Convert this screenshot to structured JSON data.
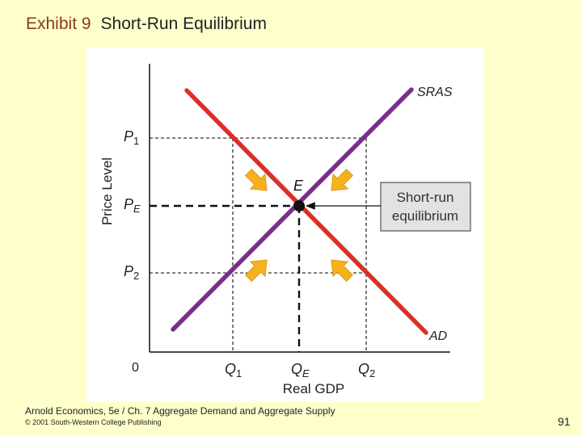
{
  "title": {
    "exhibit": "Exhibit 9",
    "name": "Short-Run Equilibrium"
  },
  "diagram": {
    "y_axis_label": "Price Level",
    "x_axis_label": "Real GDP",
    "origin_label": "0",
    "price_labels": {
      "p1": {
        "main": "P",
        "sub": "1"
      },
      "pe": {
        "main": "P",
        "sub": "E"
      },
      "p2": {
        "main": "P",
        "sub": "2"
      }
    },
    "quantity_labels": {
      "q1": {
        "main": "Q",
        "sub": "1"
      },
      "qe": {
        "main": "Q",
        "sub": "E"
      },
      "q2": {
        "main": "Q",
        "sub": "2"
      }
    },
    "curves": {
      "sras": {
        "label": "SRAS",
        "color": "#7b2d8e"
      },
      "ad": {
        "label": "AD",
        "color": "#d9302a"
      }
    },
    "equilibrium": {
      "point_label": "E",
      "callout_line1": "Short-run",
      "callout_line2": "equilibrium"
    },
    "arrow_color": "#f5b21c"
  },
  "footer": {
    "source": "Arnold Economics, 5e / Ch. 7  Aggregate Demand and Aggregate Supply",
    "copyright": "© 2001 South-Western College Publishing",
    "page_number": "91"
  }
}
